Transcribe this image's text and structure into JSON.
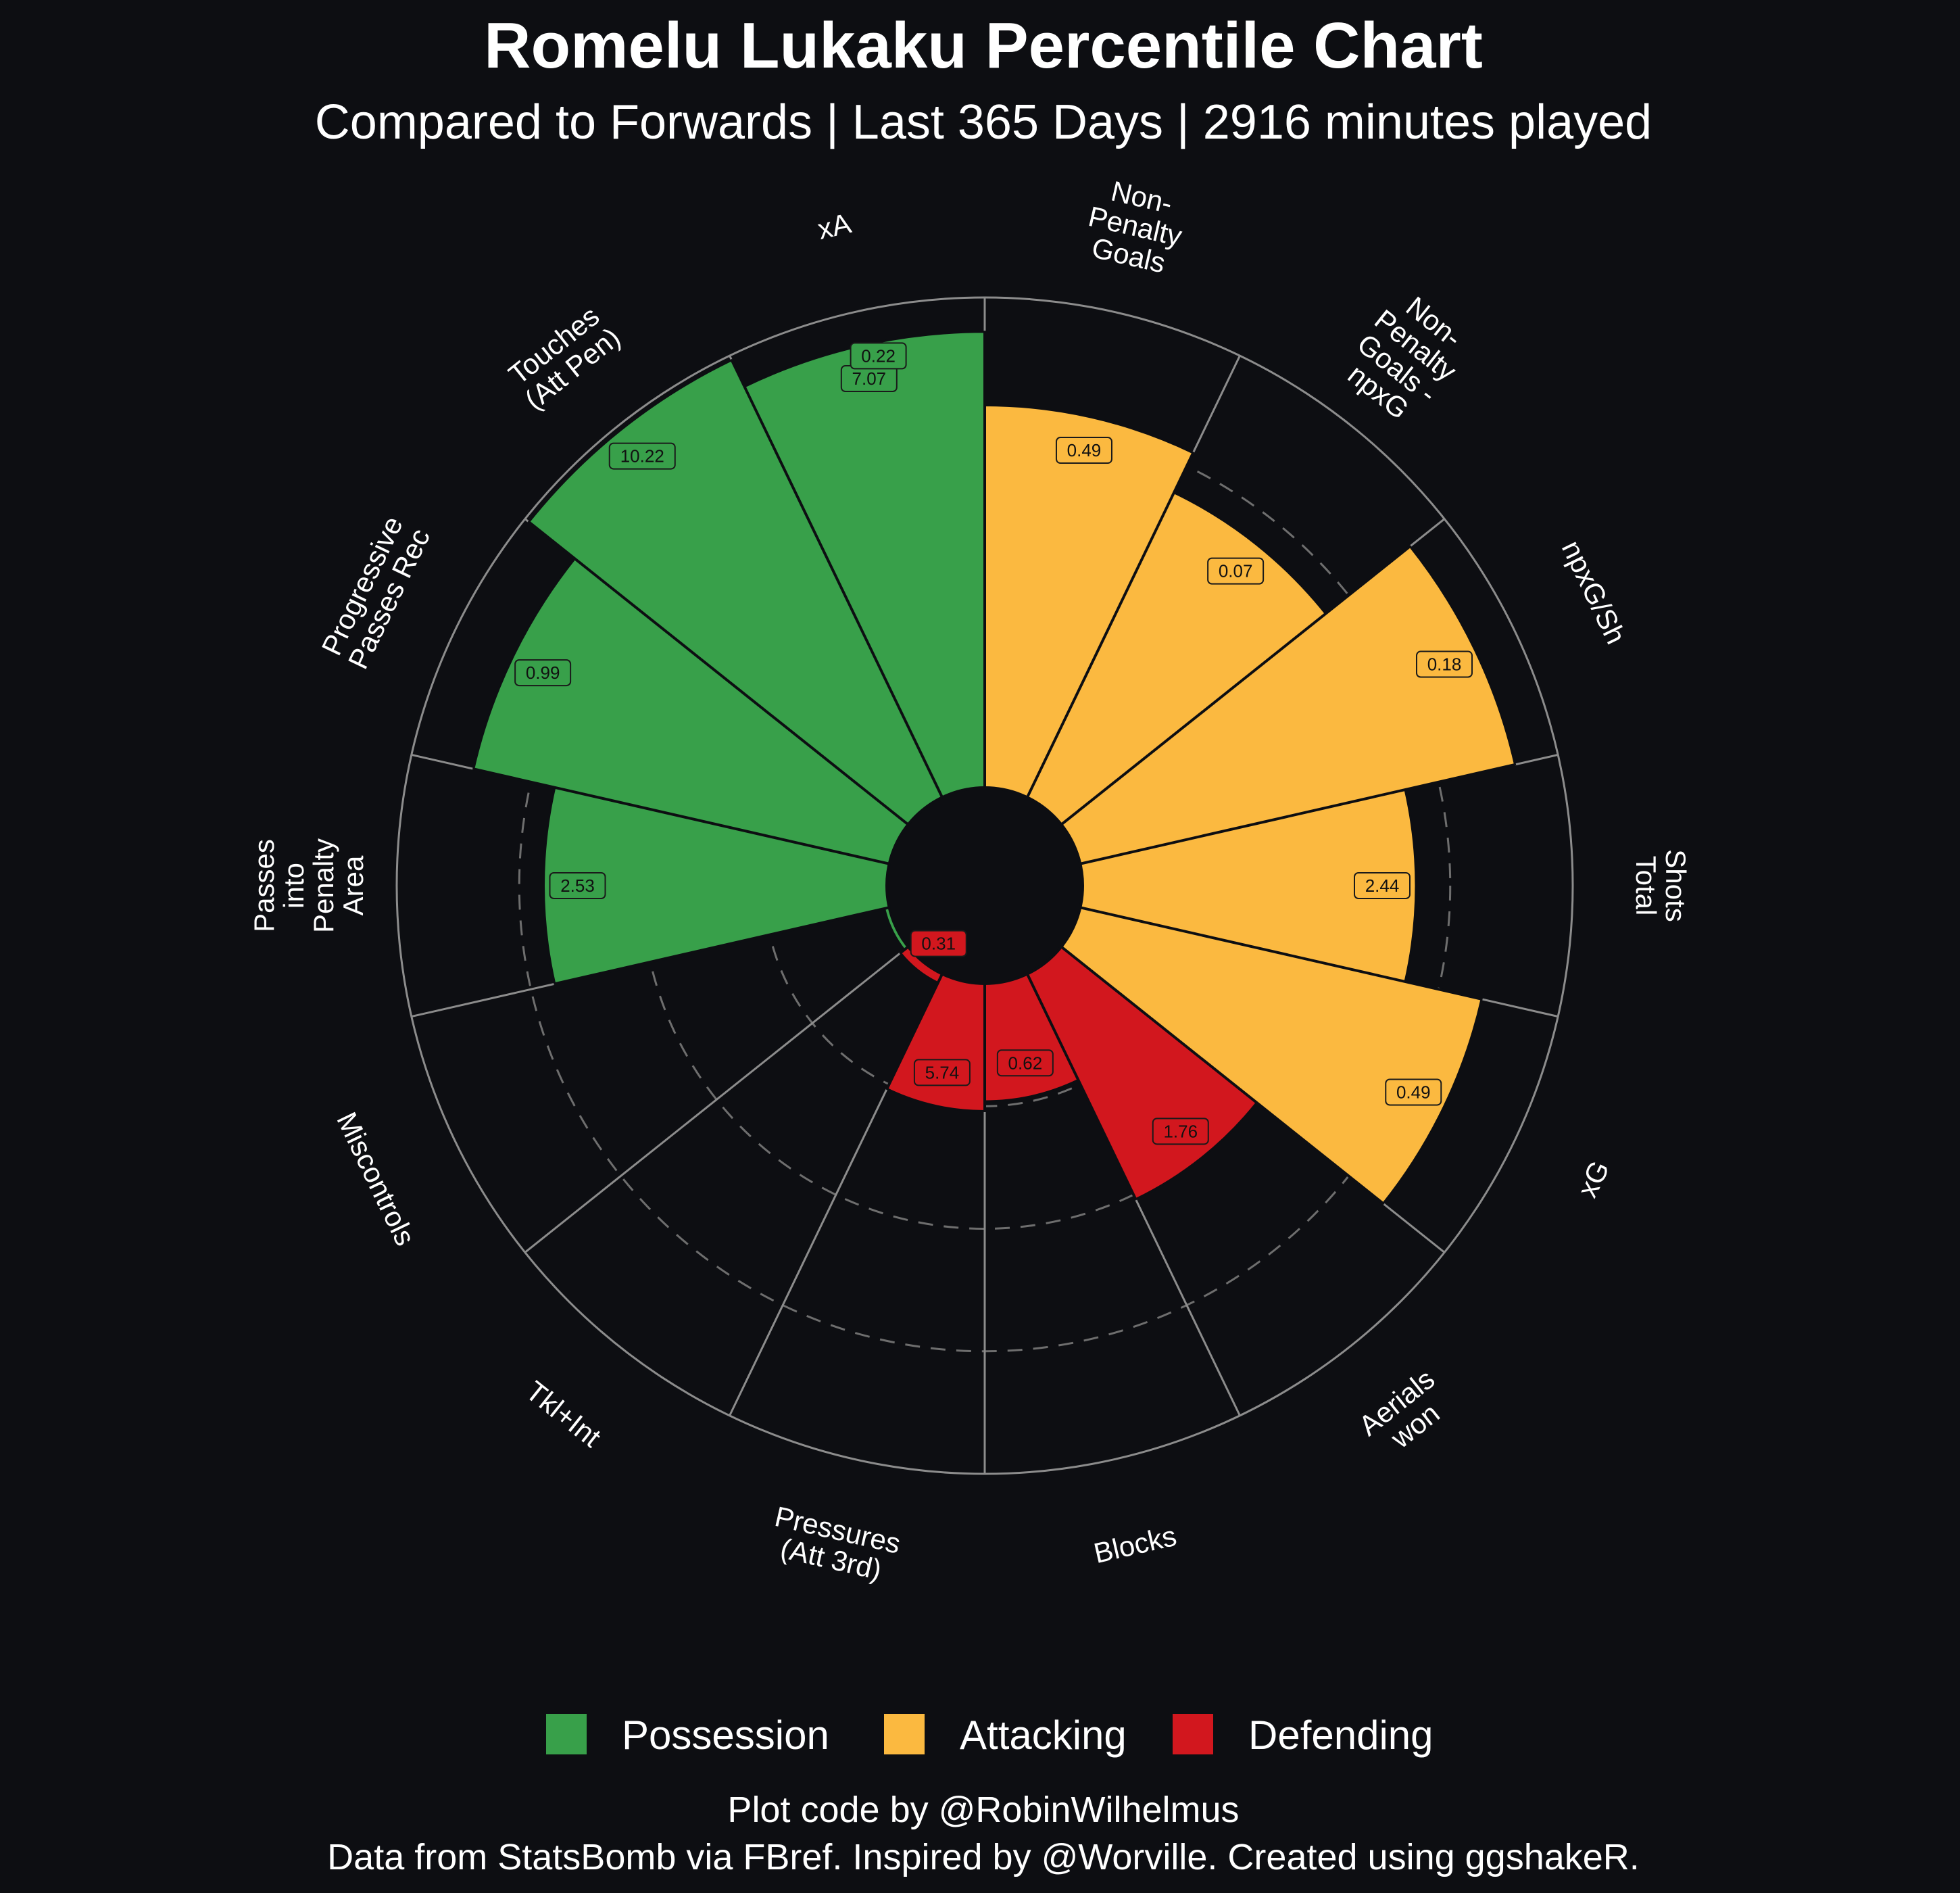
{
  "chart_data": {
    "type": "polar-bar",
    "title": "Romelu Lukaku Percentile Chart",
    "subtitle": "Compared to Forwards | Last 365 Days | 2916 minutes played",
    "caption_line1": "Plot code by @RobinWilhelmus",
    "caption_line2": "Data from StatsBomb via FBref. Inspired by @Worville. Created using ggshakeR.",
    "ylim": [
      0,
      100
    ],
    "groups": [
      {
        "name": "Possession",
        "color": "#38a04a"
      },
      {
        "name": "Attacking",
        "color": "#fbb940"
      },
      {
        "name": "Defending",
        "color": "#d2171e"
      }
    ],
    "categories": [
      {
        "label": [
          "Non-",
          "Penalty",
          "Goals"
        ],
        "group": "Attacking",
        "percentile": 78,
        "value": "0.49"
      },
      {
        "label": [
          "Non-",
          "Penalty",
          "Goals -",
          "npxG"
        ],
        "group": "Attacking",
        "percentile": 69,
        "value": "0.07"
      },
      {
        "label": [
          "npxG/Sh"
        ],
        "group": "Attacking",
        "percentile": 91,
        "value": "0.18"
      },
      {
        "label": [
          "Shots",
          "Total"
        ],
        "group": "Attacking",
        "percentile": 68,
        "value": "2.44"
      },
      {
        "label": [
          "xG"
        ],
        "group": "Attacking",
        "percentile": 84,
        "value": "0.49"
      },
      {
        "label": [
          "Aerials",
          "won"
        ],
        "group": "Defending",
        "percentile": 51,
        "value": "1.76"
      },
      {
        "label": [
          "Blocks"
        ],
        "group": "Defending",
        "percentile": 24,
        "value": "0.62"
      },
      {
        "label": [
          "Pressures",
          "(Att 3rd)"
        ],
        "group": "Defending",
        "percentile": 26,
        "value": "5.74"
      },
      {
        "label": [
          "Tkl+Int"
        ],
        "group": "Defending",
        "percentile": 2,
        "value": "0.31"
      },
      {
        "label": [
          "Miscontrols"
        ],
        "group": "Possession",
        "percentile": 1,
        "value": ""
      },
      {
        "label": [
          "Passes",
          "into",
          "Penalty",
          "Area"
        ],
        "group": "Possession",
        "percentile": 70,
        "value": "2.53"
      },
      {
        "label": [
          "Progressive",
          "Passes Rec"
        ],
        "group": "Possession",
        "percentile": 87,
        "value": "0.99"
      },
      {
        "label": [
          "Touches",
          "(Att Pen)"
        ],
        "group": "Possession",
        "percentile": 99,
        "value": "10.22"
      },
      {
        "label": [
          "xA"
        ],
        "group": "Possession",
        "percentile": 93,
        "value": "7.07"
      }
    ],
    "extra_value_labels": [
      {
        "after_category": 13,
        "value": "0.22"
      }
    ],
    "grid": true,
    "legend_position": "bottom"
  }
}
